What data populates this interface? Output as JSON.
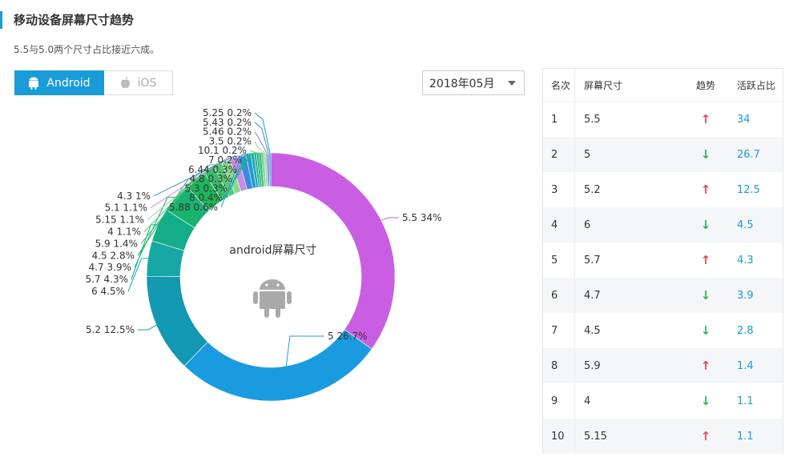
{
  "header": {
    "title": "移动设备屏幕尺寸趋势",
    "subtitle": "5.5与5.0两个尺寸占比接近六成。"
  },
  "tabs": [
    {
      "label": "Android",
      "icon": "android-icon",
      "active": true
    },
    {
      "label": "iOS",
      "icon": "apple-icon",
      "active": false
    }
  ],
  "date_select": {
    "value": "2018年05月"
  },
  "chart_data": {
    "type": "pie",
    "variant": "donut",
    "center_label": "android屏幕尺寸",
    "slices": [
      {
        "label": "5.5",
        "value": 34,
        "display": "5.5  34%",
        "color": "#c95ee3"
      },
      {
        "label": "5",
        "value": 26.7,
        "display": "5  26.7%",
        "color": "#1a9be0"
      },
      {
        "label": "5.2",
        "value": 12.5,
        "display": "5.2  12.5%",
        "color": "#1398b1"
      },
      {
        "label": "6",
        "value": 4.5,
        "display": "6  4.5%",
        "color": "#17a8a3"
      },
      {
        "label": "5.7",
        "value": 4.3,
        "display": "5.7  4.3%",
        "color": "#13ad8a"
      },
      {
        "label": "4.7",
        "value": 3.9,
        "display": "4.7  3.9%",
        "color": "#19b36f"
      },
      {
        "label": "4.5",
        "value": 2.8,
        "display": "4.5  2.8%",
        "color": "#1db65a"
      },
      {
        "label": "5.9",
        "value": 1.4,
        "display": "5.9  1.4%",
        "color": "#35bd6a"
      },
      {
        "label": "4",
        "value": 1.1,
        "display": "4  1.1%",
        "color": "#58c878"
      },
      {
        "label": "5.15",
        "value": 1.1,
        "display": "5.15  1.1%",
        "color": "#8bd88e"
      },
      {
        "label": "5.1",
        "value": 1.1,
        "display": "5.1  1.1%",
        "color": "#c98ce4"
      },
      {
        "label": "4.3",
        "value": 1,
        "display": "4.3  1%",
        "color": "#3b8be0"
      },
      {
        "label": "5.88",
        "value": 0.6,
        "display": "5.88  0.6%",
        "color": "#1f9ccf"
      },
      {
        "label": "8",
        "value": 0.4,
        "display": "8  0.4%",
        "color": "#21a7b4"
      },
      {
        "label": "5.3",
        "value": 0.3,
        "display": "5.3  0.3%",
        "color": "#1fae97"
      },
      {
        "label": "4.8",
        "value": 0.3,
        "display": "4.8  0.3%",
        "color": "#20b47e"
      },
      {
        "label": "6.44",
        "value": 0.3,
        "display": "6.44  0.3%",
        "color": "#23b867"
      },
      {
        "label": "7",
        "value": 0.2,
        "display": "7  0.2%",
        "color": "#3cc06e"
      },
      {
        "label": "10.1",
        "value": 0.2,
        "display": "10.1  0.2%",
        "color": "#63cb7e"
      },
      {
        "label": "3.5",
        "value": 0.2,
        "display": "3.5  0.2%",
        "color": "#93da94"
      },
      {
        "label": "5.46",
        "value": 0.2,
        "display": "5.46  0.2%",
        "color": "#b070de"
      },
      {
        "label": "5.43",
        "value": 0.2,
        "display": "5.43  0.2%",
        "color": "#2a8fd8"
      },
      {
        "label": "5.25",
        "value": 0.2,
        "display": "5.25  0.2%",
        "color": "#199fc0"
      }
    ]
  },
  "rank_table": {
    "headers": {
      "rank": "名次",
      "size": "屏幕尺寸",
      "trend": "趋势",
      "share": "活跃占比"
    },
    "rows": [
      {
        "rank": "1",
        "size": "5.5",
        "trend": "up",
        "trend_symbol": "↑",
        "share": "34"
      },
      {
        "rank": "2",
        "size": "5",
        "trend": "down",
        "trend_symbol": "↓",
        "share": "26.7"
      },
      {
        "rank": "3",
        "size": "5.2",
        "trend": "up",
        "trend_symbol": "↑",
        "share": "12.5"
      },
      {
        "rank": "4",
        "size": "6",
        "trend": "down",
        "trend_symbol": "↓",
        "share": "4.5"
      },
      {
        "rank": "5",
        "size": "5.7",
        "trend": "up",
        "trend_symbol": "↑",
        "share": "4.3"
      },
      {
        "rank": "6",
        "size": "4.7",
        "trend": "down",
        "trend_symbol": "↓",
        "share": "3.9"
      },
      {
        "rank": "7",
        "size": "4.5",
        "trend": "down",
        "trend_symbol": "↓",
        "share": "2.8"
      },
      {
        "rank": "8",
        "size": "5.9",
        "trend": "up",
        "trend_symbol": "↑",
        "share": "1.4"
      },
      {
        "rank": "9",
        "size": "4",
        "trend": "down",
        "trend_symbol": "↓",
        "share": "1.1"
      },
      {
        "rank": "10",
        "size": "5.15",
        "trend": "up",
        "trend_symbol": "↑",
        "share": "1.1"
      }
    ]
  }
}
